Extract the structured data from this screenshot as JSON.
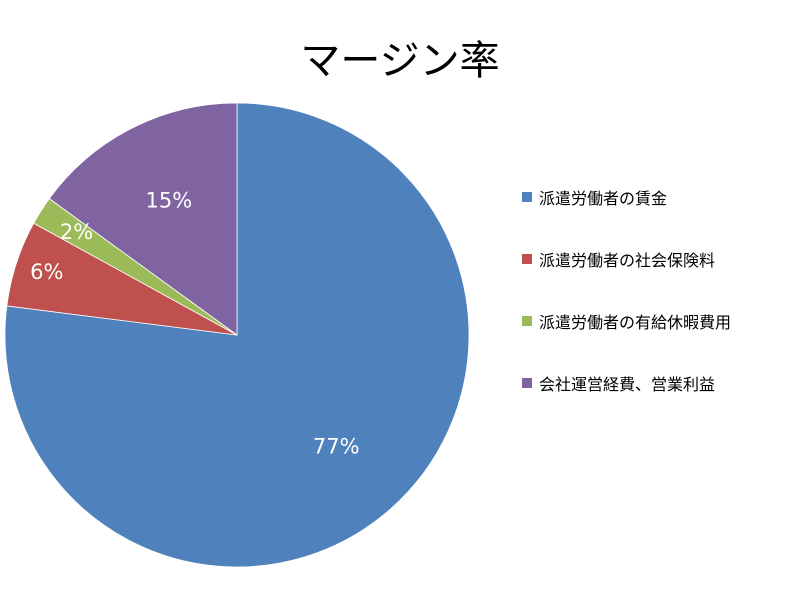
{
  "chart_data": {
    "type": "pie",
    "title": "マージン率",
    "slices": [
      {
        "label": "派遣労働者の賃金",
        "value": 77,
        "display": "77%",
        "color": "#4F81BD"
      },
      {
        "label": "派遣労働者の社会保険料",
        "value": 6,
        "display": "6%",
        "color": "#C0504D"
      },
      {
        "label": "派遣労働者の有給休暇費用",
        "value": 2,
        "display": "2%",
        "color": "#9BBB59"
      },
      {
        "label": "会社運営経費、営業利益",
        "value": 15,
        "display": "15%",
        "color": "#8064A2"
      }
    ],
    "legend_position": "right",
    "start": "top",
    "direction": "clockwise"
  }
}
